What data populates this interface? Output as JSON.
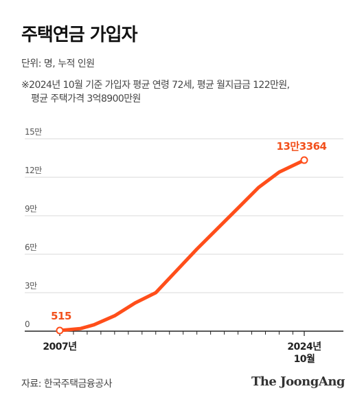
{
  "header": {
    "title": "주택연금 가입자",
    "unit": "단위: 명, 누적 인원",
    "note_line1": "※2024년 10월 기준 가입자 평균 연령 72세, 평균 월지급금 122만원,",
    "note_line2": "평균 주택가격 3억8900만원"
  },
  "footer": {
    "source": "자료: 한국주택금융공사",
    "logo": "The JoongAng"
  },
  "colors": {
    "line": "#FF4E1A",
    "label": "#F2501C",
    "grid": "#D9D9D9",
    "axis": "#222222"
  },
  "chart_data": {
    "type": "line",
    "title": "주택연금 가입자",
    "ylabel": "",
    "xlabel": "",
    "ylim": [
      0,
      150000
    ],
    "yticks": [
      0,
      30000,
      60000,
      90000,
      120000,
      150000
    ],
    "ytick_labels": [
      "0",
      "3만",
      "6만",
      "9만",
      "12만",
      "15만"
    ],
    "x_start_label": "2007년",
    "x_end_label_line1": "2024년",
    "x_end_label_line2": "10월",
    "grid": true,
    "series": [
      {
        "x": [
          2007.0,
          2008.5,
          2009.5,
          2011.0,
          2012.5,
          2014.0,
          2015.5,
          2017.0,
          2018.5,
          2020.0,
          2021.5,
          2023.0,
          2024.83
        ],
        "values": [
          515,
          2000,
          5000,
          12000,
          22000,
          30000,
          47000,
          64000,
          80000,
          96000,
          112000,
          124000,
          133364
        ]
      }
    ],
    "annotations": [
      {
        "x": 2007.0,
        "y": 515,
        "text": "515"
      },
      {
        "x": 2024.83,
        "y": 133364,
        "text": "13만3364"
      }
    ]
  }
}
